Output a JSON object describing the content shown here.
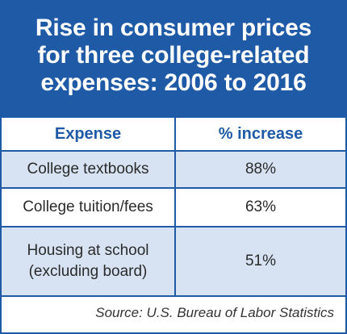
{
  "chart_data": {
    "type": "table",
    "title_lines": [
      "Rise in consumer prices",
      "for three college-related",
      "expenses: 2006 to 2016"
    ],
    "columns": [
      "Expense",
      "% increase"
    ],
    "rows": [
      {
        "expense_lines": [
          "College textbooks"
        ],
        "increase": "88%"
      },
      {
        "expense_lines": [
          "College tuition/fees"
        ],
        "increase": "63%"
      },
      {
        "expense_lines": [
          "Housing at school",
          "(excluding board)"
        ],
        "increase": "51%"
      }
    ],
    "values": [
      88,
      63,
      51
    ],
    "source": "Source: U.S. Bureau of Labor Statistics"
  },
  "colors": {
    "brand_blue": "#1f5aa6",
    "row_shade": "#d7e3f2"
  }
}
